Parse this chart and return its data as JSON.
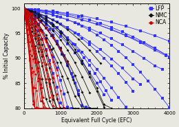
{
  "title": "",
  "xlabel": "Equivalent Full Cycle (EFC)",
  "ylabel": "% Initial Capacity",
  "xlim": [
    0,
    4000
  ],
  "ylim": [
    80,
    101
  ],
  "yticks": [
    80,
    85,
    90,
    95,
    100
  ],
  "xticks": [
    0,
    1000,
    2000,
    3000,
    4000
  ],
  "legend_labels": [
    "LFP",
    "NMC",
    "NCA"
  ],
  "legend_colors": [
    "#3333ff",
    "#111111",
    "#cc0000"
  ],
  "background_color": "#e8e8e0",
  "lfp_series": [
    {
      "x": [
        0,
        400,
        800,
        1200,
        1600,
        2000,
        2400,
        2800,
        3200,
        3600,
        4000
      ],
      "y": [
        100,
        99.7,
        99.4,
        99.0,
        98.5,
        97.9,
        97.2,
        96.4,
        95.5,
        94.5,
        93.4
      ]
    },
    {
      "x": [
        0,
        400,
        800,
        1200,
        1600,
        2000,
        2400,
        2800,
        3200,
        3600,
        3900
      ],
      "y": [
        100,
        99.6,
        99.1,
        98.5,
        97.7,
        96.8,
        95.7,
        94.5,
        93.1,
        91.6,
        90.5
      ]
    },
    {
      "x": [
        0,
        300,
        600,
        900,
        1200,
        1500,
        1800,
        2100,
        2400,
        2700,
        3000,
        3300,
        3600,
        3900
      ],
      "y": [
        100,
        99.8,
        99.5,
        99.2,
        98.8,
        98.3,
        97.7,
        97.0,
        96.2,
        95.3,
        94.3,
        93.2,
        92.0,
        90.7
      ]
    },
    {
      "x": [
        0,
        300,
        600,
        900,
        1200,
        1500,
        1800,
        2100,
        2400,
        2700,
        3000,
        3300,
        3600,
        3800
      ],
      "y": [
        100,
        99.5,
        99.0,
        98.4,
        97.7,
        96.9,
        96.0,
        95.0,
        93.9,
        92.7,
        91.4,
        90.0,
        88.5,
        87.8
      ]
    },
    {
      "x": [
        0,
        300,
        600,
        900,
        1200,
        1500,
        1800,
        2100,
        2400,
        2700,
        3000,
        3200
      ],
      "y": [
        100,
        99.2,
        98.3,
        97.3,
        96.1,
        94.8,
        93.3,
        91.7,
        89.9,
        88.0,
        85.9,
        84.7
      ]
    },
    {
      "x": [
        0,
        200,
        400,
        600,
        800,
        1000,
        1200,
        1400,
        1600,
        1800,
        2000,
        2200,
        2400,
        2600,
        2800,
        3000,
        3200,
        3400,
        3600,
        3800,
        4000
      ],
      "y": [
        100,
        99.7,
        99.4,
        99.1,
        98.7,
        98.2,
        97.7,
        97.1,
        96.4,
        95.6,
        94.7,
        93.7,
        92.6,
        91.4,
        90.1,
        88.7,
        87.2,
        85.5,
        83.8,
        82.0,
        80.1
      ]
    },
    {
      "x": [
        0,
        200,
        400,
        600,
        800,
        1000,
        1200,
        1400,
        1600,
        1800,
        2000,
        2200,
        2400,
        2600,
        2800,
        3000
      ],
      "y": [
        100,
        99.5,
        99.0,
        98.4,
        97.7,
        96.9,
        96.0,
        95.0,
        93.9,
        92.7,
        91.4,
        90.0,
        88.5,
        86.9,
        85.2,
        83.4
      ]
    },
    {
      "x": [
        0,
        200,
        400,
        600,
        800,
        1000,
        1200,
        1400,
        1600,
        1800,
        2000,
        2200,
        2400,
        2600,
        2800
      ],
      "y": [
        100,
        99.3,
        98.5,
        97.6,
        96.6,
        95.4,
        94.1,
        92.7,
        91.2,
        89.5,
        87.8,
        86.0,
        84.1,
        82.1,
        80.2
      ]
    },
    {
      "x": [
        0,
        150,
        300,
        450,
        600,
        750,
        900,
        1050,
        1200,
        1350,
        1500,
        1650,
        1800,
        1950,
        2100,
        2250,
        2400
      ],
      "y": [
        100,
        99.6,
        99.1,
        98.5,
        97.8,
        97.0,
        96.1,
        95.1,
        94.0,
        92.8,
        91.5,
        90.1,
        88.6,
        87.0,
        85.3,
        83.5,
        81.6
      ]
    },
    {
      "x": [
        0,
        200,
        400,
        600,
        800,
        1000,
        1200,
        1400,
        1600,
        1800,
        2000,
        2200
      ],
      "y": [
        100,
        99.2,
        98.2,
        97.1,
        95.8,
        94.4,
        92.8,
        91.1,
        89.2,
        87.2,
        85.0,
        82.7
      ]
    },
    {
      "x": [
        0,
        100,
        200,
        300,
        400,
        500,
        600,
        700,
        800,
        900,
        1000,
        1100,
        1200,
        1300,
        1400,
        1500,
        1600,
        1700,
        1800
      ],
      "y": [
        100,
        99.7,
        99.3,
        98.8,
        98.2,
        97.5,
        96.7,
        95.7,
        94.6,
        93.4,
        92.0,
        90.5,
        88.8,
        87.0,
        85.0,
        82.8,
        80.5,
        80.2,
        80.0
      ]
    },
    {
      "x": [
        0,
        150,
        300,
        450,
        600,
        750,
        900,
        1050,
        1200,
        1350,
        1500
      ],
      "y": [
        100,
        99.3,
        98.4,
        97.3,
        96.0,
        94.5,
        92.8,
        90.8,
        88.6,
        86.2,
        83.5
      ]
    },
    {
      "x": [
        0,
        100,
        200,
        300,
        400,
        500,
        600,
        700,
        800,
        900,
        1000,
        1100,
        1200,
        1300
      ],
      "y": [
        100,
        99.5,
        98.8,
        97.9,
        96.8,
        95.5,
        94.0,
        92.3,
        90.3,
        88.1,
        85.6,
        82.8,
        80.2,
        80.0
      ]
    },
    {
      "x": [
        0,
        100,
        200,
        300,
        400,
        500,
        600,
        700,
        800,
        900,
        1000,
        1100,
        1200
      ],
      "y": [
        100,
        99.2,
        98.2,
        97.0,
        95.5,
        93.8,
        91.8,
        89.5,
        87.0,
        84.2,
        81.1,
        80.0,
        80.0
      ]
    },
    {
      "x": [
        0,
        400,
        800,
        1200,
        1600,
        2000,
        2400,
        2800,
        3200,
        3600,
        4000
      ],
      "y": [
        100,
        99.6,
        99.1,
        98.5,
        97.7,
        96.8,
        95.8,
        94.6,
        93.3,
        91.9,
        90.3
      ]
    }
  ],
  "nmc_series": [
    {
      "x": [
        0,
        100,
        200,
        300,
        400,
        500,
        600,
        700,
        800,
        900,
        1000
      ],
      "y": [
        100,
        98.5,
        96.8,
        94.9,
        92.8,
        90.4,
        87.8,
        84.9,
        81.7,
        80.0,
        80.0
      ]
    },
    {
      "x": [
        0,
        100,
        200,
        300,
        400,
        500,
        600,
        700,
        800,
        900
      ],
      "y": [
        100,
        98.2,
        96.2,
        93.9,
        91.3,
        88.4,
        85.1,
        81.5,
        80.0,
        80.0
      ]
    },
    {
      "x": [
        0,
        100,
        200,
        300,
        400,
        500,
        600,
        700
      ],
      "y": [
        100,
        97.8,
        95.3,
        92.5,
        89.3,
        85.8,
        81.9,
        80.0
      ]
    },
    {
      "x": [
        0,
        150,
        300,
        450,
        600,
        750,
        900,
        1050,
        1200,
        1350,
        1500
      ],
      "y": [
        100,
        98.8,
        97.4,
        95.8,
        93.9,
        91.7,
        89.2,
        86.4,
        83.3,
        80.0,
        80.0
      ]
    },
    {
      "x": [
        0,
        200,
        400,
        600,
        800,
        1000,
        1200,
        1400,
        1600
      ],
      "y": [
        100,
        98.5,
        96.7,
        94.6,
        92.1,
        89.2,
        86.0,
        82.4,
        80.0
      ]
    },
    {
      "x": [
        0,
        100,
        200,
        300,
        400,
        500,
        600,
        700,
        800,
        900,
        1000,
        1100,
        1200
      ],
      "y": [
        100,
        99.0,
        97.8,
        96.4,
        94.7,
        92.7,
        90.5,
        88.0,
        85.1,
        81.9,
        80.0,
        80.0,
        80.0
      ]
    },
    {
      "x": [
        0,
        200,
        400,
        600,
        800,
        1000,
        1200,
        1400,
        1600,
        1800
      ],
      "y": [
        100,
        99.2,
        98.2,
        97.0,
        95.5,
        93.7,
        91.6,
        89.1,
        86.3,
        83.1
      ]
    },
    {
      "x": [
        0,
        300,
        600,
        900,
        1200,
        1500,
        1800,
        2100
      ],
      "y": [
        100,
        99.3,
        98.4,
        97.2,
        95.7,
        93.8,
        91.6,
        89.0
      ]
    },
    {
      "x": [
        0,
        100,
        200,
        300,
        400,
        500,
        600
      ],
      "y": [
        100,
        97.0,
        93.7,
        90.0,
        86.0,
        81.5,
        80.0
      ]
    },
    {
      "x": [
        0,
        200,
        400,
        600,
        800,
        1000,
        1200,
        1400,
        1600,
        1800,
        2000
      ],
      "y": [
        100,
        99.0,
        97.7,
        96.1,
        94.2,
        92.0,
        89.4,
        86.5,
        83.2,
        80.0,
        80.0
      ]
    },
    {
      "x": [
        0,
        150,
        300,
        450,
        600,
        750,
        900,
        1050,
        1200,
        1350,
        1500,
        1650,
        1800
      ],
      "y": [
        100,
        99.3,
        98.5,
        97.5,
        96.2,
        94.7,
        92.9,
        90.8,
        88.4,
        85.7,
        82.6,
        80.0,
        80.0
      ]
    },
    {
      "x": [
        0,
        200,
        400,
        600,
        800,
        1000,
        1200,
        1400,
        1600,
        1800,
        2000,
        2200
      ],
      "y": [
        100,
        99.4,
        98.6,
        97.6,
        96.4,
        94.9,
        93.2,
        91.2,
        88.9,
        86.3,
        83.4,
        80.2
      ]
    },
    {
      "x": [
        0,
        100,
        200,
        300,
        400,
        500,
        600,
        700,
        800,
        900,
        1000,
        1100
      ],
      "y": [
        100,
        98.8,
        97.4,
        95.7,
        93.7,
        91.4,
        88.8,
        85.8,
        82.5,
        80.0,
        80.0,
        80.0
      ]
    },
    {
      "x": [
        0,
        200,
        400,
        600,
        800,
        1000,
        1200,
        1400,
        1600,
        1800,
        2000,
        2200,
        2400
      ],
      "y": [
        100,
        99.5,
        98.8,
        97.9,
        96.8,
        95.4,
        93.7,
        91.8,
        89.5,
        86.9,
        84.0,
        80.7,
        80.0
      ]
    }
  ],
  "nca_series": [
    {
      "x": [
        0,
        50,
        100,
        150,
        200,
        250,
        300,
        350,
        400
      ],
      "y": [
        100,
        98.0,
        95.8,
        93.3,
        90.5,
        87.4,
        84.0,
        80.2,
        80.0
      ]
    },
    {
      "x": [
        0,
        50,
        100,
        150,
        200,
        250,
        300
      ],
      "y": [
        100,
        97.2,
        94.2,
        90.8,
        87.1,
        83.0,
        80.0
      ]
    },
    {
      "x": [
        0,
        100,
        200,
        300,
        400,
        500,
        600,
        700
      ],
      "y": [
        100,
        98.5,
        96.7,
        94.5,
        92.0,
        89.1,
        85.8,
        82.1
      ]
    },
    {
      "x": [
        0,
        100,
        200,
        300,
        400,
        500
      ],
      "y": [
        100,
        97.5,
        94.7,
        91.5,
        88.0,
        84.1
      ]
    },
    {
      "x": [
        0,
        50,
        100,
        150,
        200,
        250,
        300,
        350
      ],
      "y": [
        100,
        96.8,
        93.3,
        89.5,
        85.3,
        80.7,
        80.0,
        80.0
      ]
    },
    {
      "x": [
        0,
        75,
        150,
        225,
        300,
        375,
        450,
        525,
        600
      ],
      "y": [
        100,
        98.2,
        96.1,
        93.7,
        91.0,
        88.0,
        84.7,
        81.0,
        80.0
      ]
    },
    {
      "x": [
        0,
        100,
        200,
        300,
        400,
        500,
        600,
        700,
        800
      ],
      "y": [
        100,
        99.0,
        97.7,
        96.1,
        94.1,
        91.7,
        88.9,
        85.7,
        82.0
      ]
    },
    {
      "x": [
        0,
        150,
        300,
        450,
        600,
        750,
        900
      ],
      "y": [
        100,
        98.8,
        97.3,
        95.5,
        93.3,
        90.7,
        87.7
      ]
    },
    {
      "x": [
        0,
        50,
        100,
        150,
        200,
        250,
        300,
        350,
        400,
        450,
        500
      ],
      "y": [
        100,
        98.5,
        96.8,
        94.8,
        92.5,
        89.8,
        86.8,
        83.5,
        80.0,
        80.0,
        80.0
      ]
    },
    {
      "x": [
        0,
        75,
        150,
        225,
        300,
        375,
        450
      ],
      "y": [
        100,
        97.8,
        95.3,
        92.4,
        89.1,
        85.5,
        81.5
      ]
    },
    {
      "x": [
        0,
        100,
        200,
        300,
        400,
        500,
        600,
        700,
        800,
        900,
        1000
      ],
      "y": [
        100,
        99.2,
        98.2,
        97.0,
        95.5,
        93.7,
        91.5,
        89.0,
        86.1,
        82.8,
        79.5
      ]
    },
    {
      "x": [
        0,
        200,
        400,
        600,
        800,
        1000,
        1200
      ],
      "y": [
        100,
        99.0,
        97.7,
        96.1,
        94.1,
        91.7,
        89.0
      ]
    },
    {
      "x": [
        0,
        50,
        100,
        150,
        200,
        250,
        300,
        350,
        400,
        450
      ],
      "y": [
        100,
        97.5,
        94.7,
        91.5,
        88.0,
        84.1,
        80.0,
        80.0,
        80.0,
        80.0
      ]
    },
    {
      "x": [
        0,
        75,
        150,
        225,
        300,
        375,
        450,
        525
      ],
      "y": [
        100,
        98.5,
        96.7,
        94.5,
        92.0,
        89.1,
        85.8,
        82.1
      ]
    },
    {
      "x": [
        0,
        50,
        100,
        150,
        200,
        250,
        300,
        350,
        400
      ],
      "y": [
        100,
        97.0,
        93.7,
        90.0,
        86.0,
        81.5,
        80.0,
        80.0,
        80.0
      ]
    },
    {
      "x": [
        0,
        100,
        200,
        300,
        400,
        500,
        600,
        700,
        800,
        900
      ],
      "y": [
        100,
        98.8,
        97.3,
        95.5,
        93.3,
        90.7,
        87.7,
        84.3,
        80.5,
        80.0
      ]
    },
    {
      "x": [
        0,
        75,
        150,
        225,
        300,
        375,
        450,
        525,
        600,
        675
      ],
      "y": [
        100,
        98.0,
        95.8,
        93.3,
        90.5,
        87.4,
        84.0,
        80.2,
        80.0,
        80.0
      ]
    },
    {
      "x": [
        0,
        100,
        200,
        300,
        400,
        500,
        600,
        700,
        800
      ],
      "y": [
        100,
        99.3,
        98.4,
        97.2,
        95.7,
        93.8,
        91.6,
        89.0,
        86.0
      ]
    },
    {
      "x": [
        0,
        50,
        100,
        150,
        200,
        250,
        300,
        350
      ],
      "y": [
        100,
        97.5,
        94.7,
        91.5,
        88.0,
        84.2,
        80.0,
        80.0
      ]
    },
    {
      "x": [
        0,
        100,
        200,
        300,
        400,
        500,
        600,
        700,
        800,
        900,
        1000,
        1100
      ],
      "y": [
        100,
        99.5,
        98.8,
        97.9,
        96.8,
        95.4,
        93.7,
        91.7,
        89.3,
        86.6,
        83.5,
        80.0
      ]
    }
  ]
}
